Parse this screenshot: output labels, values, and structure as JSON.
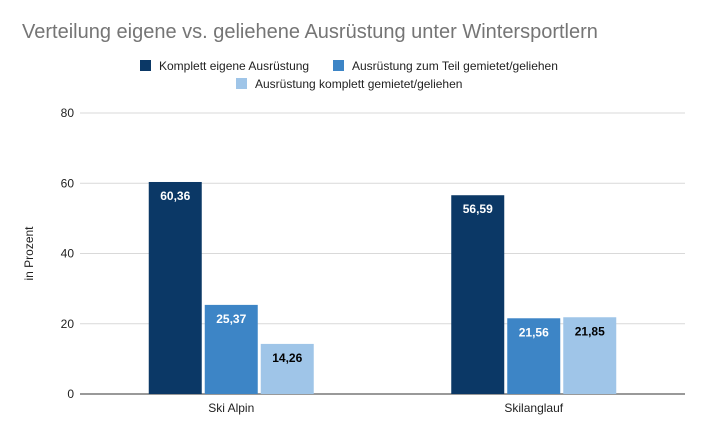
{
  "chart_data": {
    "type": "bar",
    "title": "Verteilung eigene vs. geliehene Ausrüstung unter Wintersportlern",
    "ylabel": "in Prozent",
    "xlabel": "",
    "categories": [
      "Ski Alpin",
      "Skilanglauf"
    ],
    "series": [
      {
        "name": "Komplett eigene Ausrüstung",
        "values": [
          60.36,
          56.59
        ],
        "labels": [
          "60,36",
          "56,59"
        ],
        "color": "#0b3866",
        "label_color": "#ffffff"
      },
      {
        "name": "Ausrüstung zum Teil gemietet/geliehen",
        "values": [
          25.37,
          21.56
        ],
        "labels": [
          "25,37",
          "21,56"
        ],
        "color": "#3d85c6",
        "label_color": "#ffffff"
      },
      {
        "name": "Ausrüstung komplett gemietet/geliehen",
        "values": [
          14.26,
          21.85
        ],
        "labels": [
          "14,26",
          "21,85"
        ],
        "color": "#9fc5e8",
        "label_color": "#000000"
      }
    ],
    "ylim": [
      0,
      80
    ],
    "yticks": [
      0,
      20,
      40,
      60,
      80
    ],
    "grid": true,
    "legend_position": "top"
  }
}
